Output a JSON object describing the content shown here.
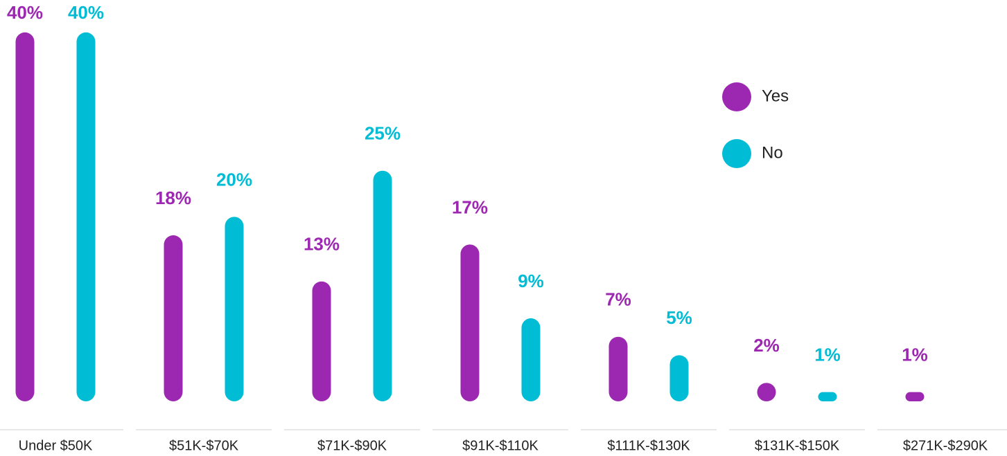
{
  "chart_data": {
    "type": "bar",
    "categories": [
      "Under $50K",
      "$51K-$70K",
      "$71K-$90K",
      "$91K-$110K",
      "$111K-$130K",
      "$131K-$150K",
      "$271K-$290K"
    ],
    "series": [
      {
        "name": "Yes",
        "color": "#9c27b0",
        "values": [
          40,
          18,
          13,
          17,
          7,
          2,
          1
        ],
        "value_labels": [
          "40%",
          "18%",
          "13%",
          "17%",
          "7%",
          "2%",
          "1%"
        ]
      },
      {
        "name": "No",
        "color": "#00bcd4",
        "values": [
          40,
          20,
          25,
          9,
          5,
          1,
          null
        ],
        "value_labels": [
          "40%",
          "20%",
          "25%",
          "9%",
          "5%",
          "1%",
          null
        ]
      }
    ],
    "legend": "top-right"
  }
}
